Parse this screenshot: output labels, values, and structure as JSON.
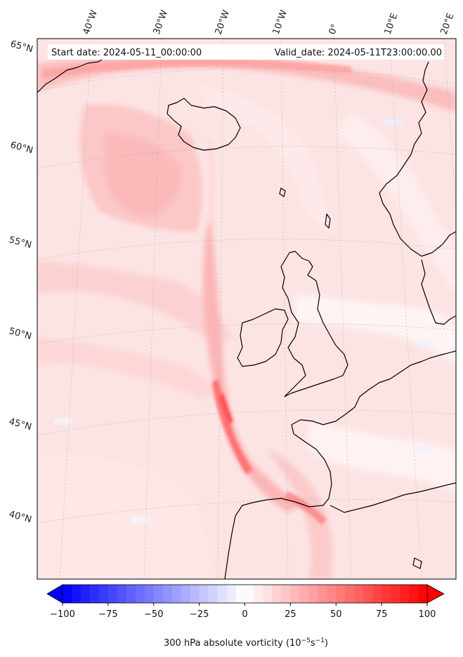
{
  "header": {
    "start_date": "Start date: 2024-05-11_00:00:00",
    "valid_date": "Valid_date: 2024-05-11T23:00:00.00"
  },
  "longitude_labels": [
    "40°W",
    "30°W",
    "20°W",
    "10°W",
    "0°",
    "10°E",
    "20°E"
  ],
  "latitude_labels": [
    "65°N",
    "60°N",
    "55°N",
    "50°N",
    "45°N",
    "40°N"
  ],
  "colorbar": {
    "ticks": [
      "−100",
      "−75",
      "−50",
      "−25",
      "0",
      "25",
      "50",
      "75",
      "100"
    ],
    "range": [
      -100,
      100
    ],
    "colormap": "bwr",
    "label": "300 hPa absolute vorticity (10",
    "label_exp1": "−5",
    "label_mid": "s",
    "label_exp2": "−1",
    "label_end": ")"
  },
  "colors": {
    "negative": "#0000ff",
    "zero": "#ffffff",
    "positive": "#ff0000",
    "coast": "#000000"
  }
}
